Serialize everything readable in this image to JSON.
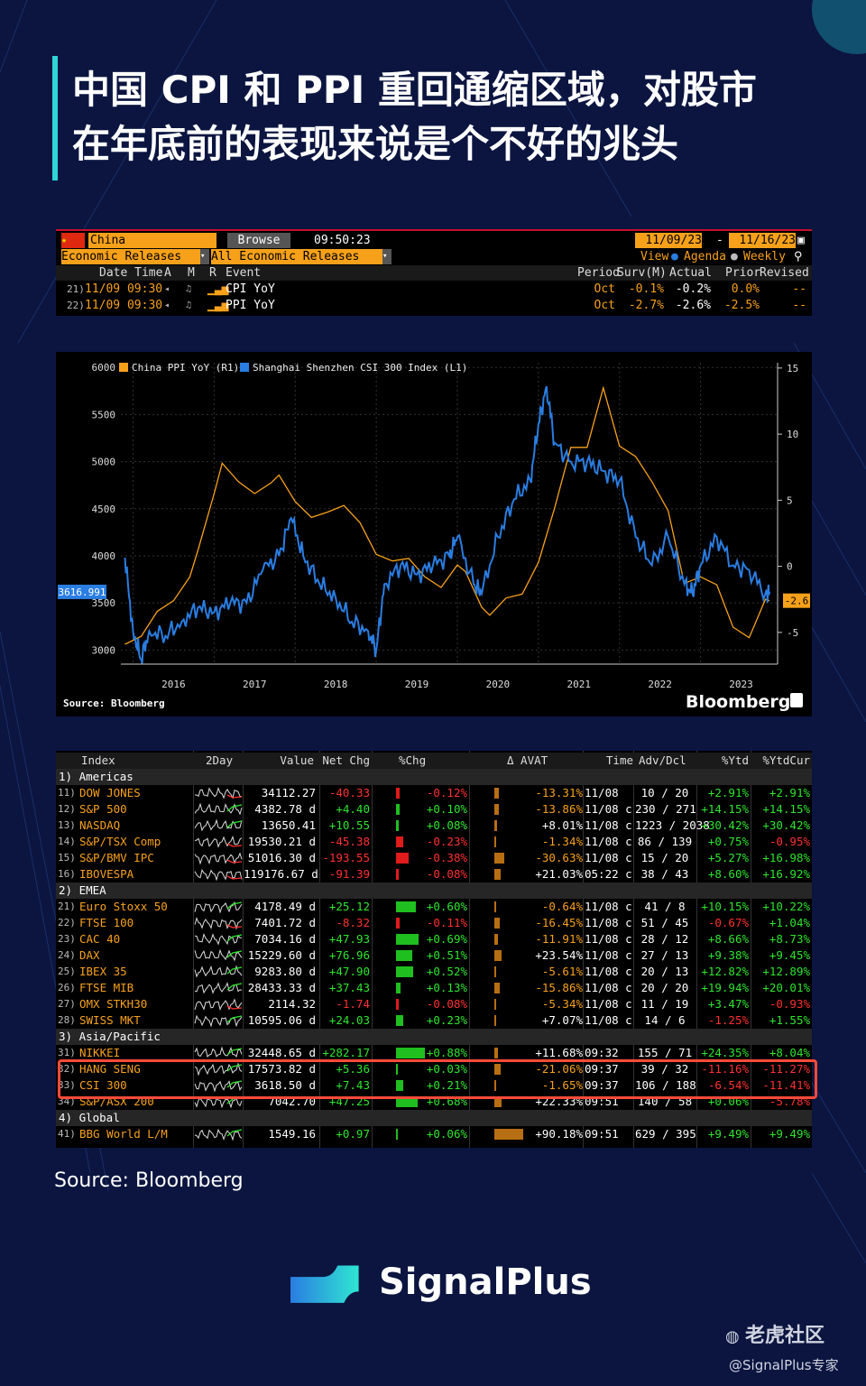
{
  "title": {
    "line1": "中国 CPI 和 PPI 重回通缩区域，对股市",
    "line2": "在年底前的表现来说是个不好的兆头"
  },
  "econ_panel": {
    "country": "China",
    "browse_label": "Browse",
    "time": "09:50:23",
    "date_from": "11/09/23",
    "date_to": "11/16/23",
    "filter1": "Economic Releases",
    "filter2": "All Economic Releases",
    "view_label": "View",
    "agenda_label": "Agenda",
    "weekly_label": "Weekly",
    "headers": {
      "datetime": "Date Time",
      "a": "A",
      "m": "M",
      "r": "R",
      "event": "Event",
      "period": "Period",
      "surv": "Surv(M)",
      "actual": "Actual",
      "prior": "Prior",
      "revised": "Revised"
    },
    "rows": [
      {
        "num": "21)",
        "datetime": "11/09 09:30",
        "event": "CPI YoY",
        "period": "Oct",
        "surv": "-0.1%",
        "actual": "-0.2%",
        "prior": "0.0%",
        "revised": "--"
      },
      {
        "num": "22)",
        "datetime": "11/09 09:30",
        "event": "PPI YoY",
        "period": "Oct",
        "surv": "-2.7%",
        "actual": "-2.6%",
        "prior": "-2.5%",
        "revised": "--"
      }
    ],
    "colors": {
      "accent": "#f7a11a",
      "bg": "#000000"
    }
  },
  "chart_data": {
    "type": "line",
    "title": "",
    "legend": [
      {
        "name": "China PPI YoY  (R1)",
        "color": "#f7a11a"
      },
      {
        "name": "Shanghai Shenzhen CSI 300 Index  (L1)",
        "color": "#2a7de1"
      }
    ],
    "x_ticks": [
      "2016",
      "2017",
      "2018",
      "2019",
      "2020",
      "2021",
      "2022",
      "2023"
    ],
    "y_left": {
      "ticks": [
        3000,
        3500,
        4000,
        4500,
        5000,
        5500,
        6000
      ],
      "range": [
        2850,
        6050
      ]
    },
    "y_right": {
      "ticks": [
        -5,
        0,
        5,
        10,
        15
      ],
      "range": [
        -7.4,
        15.4
      ]
    },
    "last_left_label": "3616.991",
    "last_right_label": "-2.6",
    "source": "Source: Bloomberg",
    "brand": "Bloomberg",
    "series": [
      {
        "name": "China PPI YoY",
        "axis": "right",
        "color": "#f7a11a",
        "x": [
          2015.9,
          2016.1,
          2016.3,
          2016.5,
          2016.7,
          2016.8,
          2017.0,
          2017.1,
          2017.3,
          2017.5,
          2017.7,
          2017.8,
          2018.0,
          2018.2,
          2018.4,
          2018.6,
          2018.8,
          2019.0,
          2019.2,
          2019.4,
          2019.6,
          2019.8,
          2020.0,
          2020.1,
          2020.3,
          2020.4,
          2020.6,
          2020.8,
          2021.0,
          2021.2,
          2021.4,
          2021.6,
          2021.8,
          2022.0,
          2022.2,
          2022.4,
          2022.6,
          2022.8,
          2023.0,
          2023.2,
          2023.4,
          2023.6,
          2023.8,
          2023.85
        ],
        "y": [
          -5.9,
          -5.3,
          -3.4,
          -2.6,
          -0.8,
          1.2,
          5.5,
          7.8,
          6.4,
          5.5,
          6.3,
          6.9,
          4.9,
          3.7,
          4.1,
          4.6,
          3.3,
          0.9,
          0.4,
          0.6,
          -0.8,
          -1.6,
          0.1,
          -0.4,
          -3.1,
          -3.7,
          -2.4,
          -2.1,
          0.3,
          4.4,
          9.0,
          9.0,
          13.5,
          9.1,
          8.3,
          6.4,
          4.2,
          -1.3,
          -0.8,
          -1.4,
          -4.6,
          -5.4,
          -2.5,
          -2.6
        ]
      },
      {
        "name": "Shanghai Shenzhen CSI 300 Index",
        "axis": "left",
        "color": "#2a7de1",
        "x": [
          2015.9,
          2016.0,
          2016.1,
          2016.2,
          2016.4,
          2016.6,
          2016.8,
          2017.0,
          2017.2,
          2017.4,
          2017.6,
          2017.8,
          2017.95,
          2018.1,
          2018.3,
          2018.5,
          2018.7,
          2018.9,
          2019.0,
          2019.1,
          2019.3,
          2019.5,
          2019.7,
          2019.9,
          2020.0,
          2020.2,
          2020.3,
          2020.5,
          2020.7,
          2020.9,
          2021.0,
          2021.1,
          2021.2,
          2021.4,
          2021.6,
          2021.8,
          2022.0,
          2022.2,
          2022.4,
          2022.6,
          2022.8,
          2022.9,
          2023.0,
          2023.2,
          2023.4,
          2023.6,
          2023.8,
          2023.85
        ],
        "y": [
          3980,
          3200,
          2900,
          3200,
          3150,
          3300,
          3450,
          3400,
          3500,
          3500,
          3850,
          4000,
          4400,
          4000,
          3700,
          3550,
          3300,
          3200,
          3000,
          3700,
          3900,
          3800,
          3900,
          4000,
          4200,
          3700,
          3600,
          4200,
          4600,
          4800,
          5400,
          5800,
          5200,
          5000,
          5000,
          4900,
          4800,
          4200,
          3900,
          4200,
          3700,
          3600,
          3900,
          4200,
          3900,
          3850,
          3600,
          3617
        ]
      }
    ]
  },
  "index_table": {
    "headers": {
      "index": "Index",
      "twoday": "2Day",
      "value": "Value",
      "netchg": "Net Chg",
      "pchg": "%Chg",
      "avat": "Δ AVAT",
      "time": "Time",
      "advdcl": "Adv/Dcl",
      "ytd": "%Ytd",
      "ytdcur": "%YtdCur"
    },
    "sections": [
      {
        "label": "1) Americas",
        "rows": [
          {
            "num": "11)",
            "name": "DOW JONES",
            "value": "34112.27",
            "netchg": "-40.33",
            "pchg": "-0.12%",
            "avat": "-13.31%",
            "time": "11/08",
            "advdcl": "10 / 20",
            "ytd": "+2.91%",
            "ytdcur": "+2.91%"
          },
          {
            "num": "12)",
            "name": "S&P 500",
            "value": "4382.78 d",
            "netchg": "+4.40",
            "pchg": "+0.10%",
            "avat": "-13.86%",
            "time": "11/08 c",
            "advdcl": "230 / 271",
            "ytd": "+14.15%",
            "ytdcur": "+14.15%"
          },
          {
            "num": "13)",
            "name": "NASDAQ",
            "value": "13650.41",
            "netchg": "+10.55",
            "pchg": "+0.08%",
            "avat": "+8.01%",
            "time": "11/08 c",
            "advdcl": "1223 / 2038",
            "ytd": "+30.42%",
            "ytdcur": "+30.42%"
          },
          {
            "num": "14)",
            "name": "S&P/TSX Comp",
            "value": "19530.21 d",
            "netchg": "-45.38",
            "pchg": "-0.23%",
            "avat": "-1.34%",
            "time": "11/08 c",
            "advdcl": "86 / 139",
            "ytd": "+0.75%",
            "ytdcur": "-0.95%"
          },
          {
            "num": "15)",
            "name": "S&P/BMV IPC",
            "value": "51016.30 d",
            "netchg": "-193.55",
            "pchg": "-0.38%",
            "avat": "-30.63%",
            "time": "11/08 c",
            "advdcl": "15 / 20",
            "ytd": "+5.27%",
            "ytdcur": "+16.98%"
          },
          {
            "num": "16)",
            "name": "IBOVESPA",
            "value": "119176.67 d",
            "netchg": "-91.39",
            "pchg": "-0.08%",
            "avat": "+21.03%",
            "time": "05:22 c",
            "advdcl": "38 / 43",
            "ytd": "+8.60%",
            "ytdcur": "+16.92%"
          }
        ]
      },
      {
        "label": "2) EMEA",
        "rows": [
          {
            "num": "21)",
            "name": "Euro Stoxx 50",
            "value": "4178.49 d",
            "netchg": "+25.12",
            "pchg": "+0.60%",
            "avat": "-0.64%",
            "time": "11/08 c",
            "advdcl": "41 / 8",
            "ytd": "+10.15%",
            "ytdcur": "+10.22%"
          },
          {
            "num": "22)",
            "name": "FTSE 100",
            "value": "7401.72 d",
            "netchg": "-8.32",
            "pchg": "-0.11%",
            "avat": "-16.45%",
            "time": "11/08 c",
            "advdcl": "51 / 45",
            "ytd": "-0.67%",
            "ytdcur": "+1.04%"
          },
          {
            "num": "23)",
            "name": "CAC 40",
            "value": "7034.16 d",
            "netchg": "+47.93",
            "pchg": "+0.69%",
            "avat": "-11.91%",
            "time": "11/08 c",
            "advdcl": "28 / 12",
            "ytd": "+8.66%",
            "ytdcur": "+8.73%"
          },
          {
            "num": "24)",
            "name": "DAX",
            "value": "15229.60 d",
            "netchg": "+76.96",
            "pchg": "+0.51%",
            "avat": "+23.54%",
            "time": "11/08 c",
            "advdcl": "27 / 13",
            "ytd": "+9.38%",
            "ytdcur": "+9.45%"
          },
          {
            "num": "25)",
            "name": "IBEX 35",
            "value": "9283.80 d",
            "netchg": "+47.90",
            "pchg": "+0.52%",
            "avat": "-5.61%",
            "time": "11/08 c",
            "advdcl": "20 / 13",
            "ytd": "+12.82%",
            "ytdcur": "+12.89%"
          },
          {
            "num": "26)",
            "name": "FTSE MIB",
            "value": "28433.33 d",
            "netchg": "+37.43",
            "pchg": "+0.13%",
            "avat": "-15.86%",
            "time": "11/08 c",
            "advdcl": "20 / 20",
            "ytd": "+19.94%",
            "ytdcur": "+20.01%"
          },
          {
            "num": "27)",
            "name": "OMX STKH30",
            "value": "2114.32",
            "netchg": "-1.74",
            "pchg": "-0.08%",
            "avat": "-5.34%",
            "time": "11/08 c",
            "advdcl": "11 / 19",
            "ytd": "+3.47%",
            "ytdcur": "-0.93%"
          },
          {
            "num": "28)",
            "name": "SWISS MKT",
            "value": "10595.06 d",
            "netchg": "+24.03",
            "pchg": "+0.23%",
            "avat": "+7.07%",
            "time": "11/08 c",
            "advdcl": "14 / 6",
            "ytd": "-1.25%",
            "ytdcur": "+1.55%"
          }
        ]
      },
      {
        "label": "3) Asia/Pacific",
        "rows": [
          {
            "num": "31)",
            "name": "NIKKEI",
            "value": "32448.65 d",
            "netchg": "+282.17",
            "pchg": "+0.88%",
            "avat": "+11.68%",
            "time": "09:32",
            "advdcl": "155 / 71",
            "ytd": "+24.35%",
            "ytdcur": "+8.04%"
          },
          {
            "num": "32)",
            "name": "HANG SENG",
            "value": "17573.82 d",
            "netchg": "+5.36",
            "pchg": "+0.03%",
            "avat": "-21.06%",
            "time": "09:37",
            "advdcl": "39 / 32",
            "ytd": "-11.16%",
            "ytdcur": "-11.27%"
          },
          {
            "num": "33)",
            "name": "CSI 300",
            "value": "3618.50 d",
            "netchg": "+7.43",
            "pchg": "+0.21%",
            "avat": "-1.65%",
            "time": "09:37",
            "advdcl": "106 / 188",
            "ytd": "-6.54%",
            "ytdcur": "-11.41%"
          },
          {
            "num": "34)",
            "name": "S&P/ASX 200",
            "value": "7042.70",
            "netchg": "+47.25",
            "pchg": "+0.68%",
            "avat": "+22.33%",
            "time": "09:51",
            "advdcl": "140 / 58",
            "ytd": "+0.06%",
            "ytdcur": "-5.78%"
          }
        ]
      },
      {
        "label": "4) Global",
        "rows": [
          {
            "num": "41)",
            "name": "BBG World L/M",
            "value": "1549.16",
            "netchg": "+0.97",
            "pchg": "+0.06%",
            "avat": "+90.18%",
            "time": "09:51",
            "advdcl": "629 / 395",
            "ytd": "+9.49%",
            "ytdcur": "+9.49%"
          }
        ]
      }
    ]
  },
  "footer": {
    "source": "Source: Bloomberg",
    "brand": "SignalPlus",
    "tiger": "老虎社区",
    "handle": "@SignalPlus专家"
  },
  "colors": {
    "background": "#0b1540",
    "title_bar": "#2fd6d6",
    "positive": "#2ee52e",
    "negative": "#ff3030",
    "highlight_box": "#ff4a3a"
  }
}
